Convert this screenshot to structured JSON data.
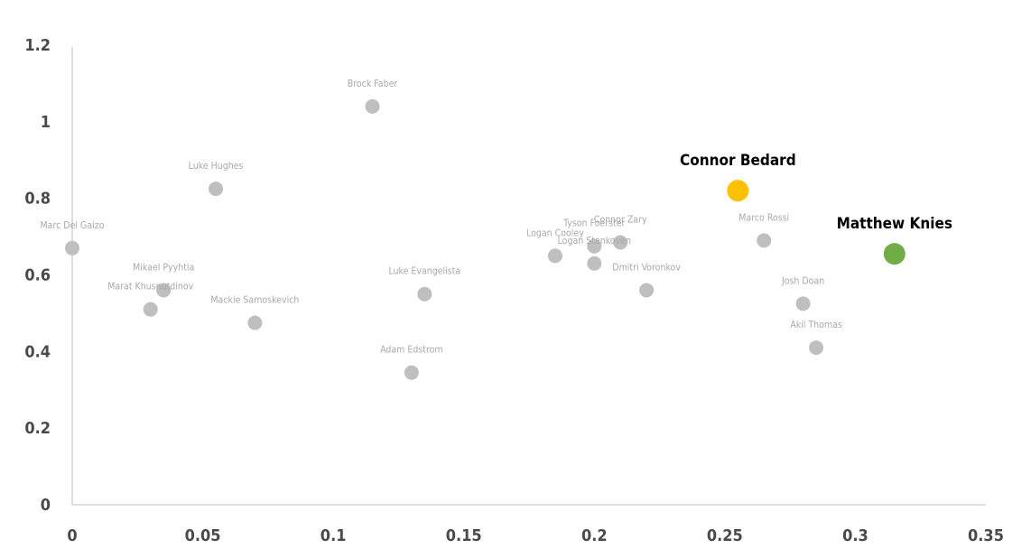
{
  "chart_data": {
    "type": "scatter",
    "title": "",
    "xlabel": "",
    "ylabel": "",
    "xlim": [
      0,
      0.35
    ],
    "ylim": [
      0,
      1.2
    ],
    "x_ticks": [
      "0",
      "0.05",
      "0.1",
      "0.15",
      "0.2",
      "0.25",
      "0.3",
      "0.35"
    ],
    "y_ticks": [
      "0",
      "0.2",
      "0.4",
      "0.6",
      "0.8",
      "1",
      "1.2"
    ],
    "grid": false,
    "colors": {
      "default": "#bfbfbf",
      "bedard": "#ffc000",
      "knies": "#70ad47"
    },
    "points": [
      {
        "name": "Marc Del Gaizo",
        "x": 0.0,
        "y": 0.67,
        "highlight": false
      },
      {
        "name": "Luke Hughes",
        "x": 0.055,
        "y": 0.825,
        "highlight": false
      },
      {
        "name": "Mikael Pyyhtia",
        "x": 0.035,
        "y": 0.56,
        "highlight": false
      },
      {
        "name": "Marat Khusnutdinov",
        "x": 0.03,
        "y": 0.51,
        "highlight": false
      },
      {
        "name": "Mackie Samoskevich",
        "x": 0.07,
        "y": 0.475,
        "highlight": false
      },
      {
        "name": "Brock Faber",
        "x": 0.115,
        "y": 1.04,
        "highlight": false
      },
      {
        "name": "Luke Evangelista",
        "x": 0.135,
        "y": 0.55,
        "highlight": false
      },
      {
        "name": "Adam Edstrom",
        "x": 0.13,
        "y": 0.345,
        "highlight": false
      },
      {
        "name": "Logan Cooley",
        "x": 0.185,
        "y": 0.65,
        "highlight": false
      },
      {
        "name": "Tyson Foerster",
        "x": 0.2,
        "y": 0.675,
        "highlight": false
      },
      {
        "name": "Logan Stankoven",
        "x": 0.2,
        "y": 0.63,
        "highlight": false
      },
      {
        "name": "Connor Zary",
        "x": 0.21,
        "y": 0.685,
        "highlight": false
      },
      {
        "name": "Dmitri Voronkov",
        "x": 0.22,
        "y": 0.56,
        "highlight": false
      },
      {
        "name": "Connor Bedard",
        "x": 0.255,
        "y": 0.82,
        "highlight": "bedard"
      },
      {
        "name": "Marco Rossi",
        "x": 0.265,
        "y": 0.69,
        "highlight": false
      },
      {
        "name": "Josh Doan",
        "x": 0.28,
        "y": 0.525,
        "highlight": false
      },
      {
        "name": "Akil Thomas",
        "x": 0.285,
        "y": 0.41,
        "highlight": false
      },
      {
        "name": "Matthew Knies",
        "x": 0.315,
        "y": 0.655,
        "highlight": "knies"
      }
    ]
  }
}
